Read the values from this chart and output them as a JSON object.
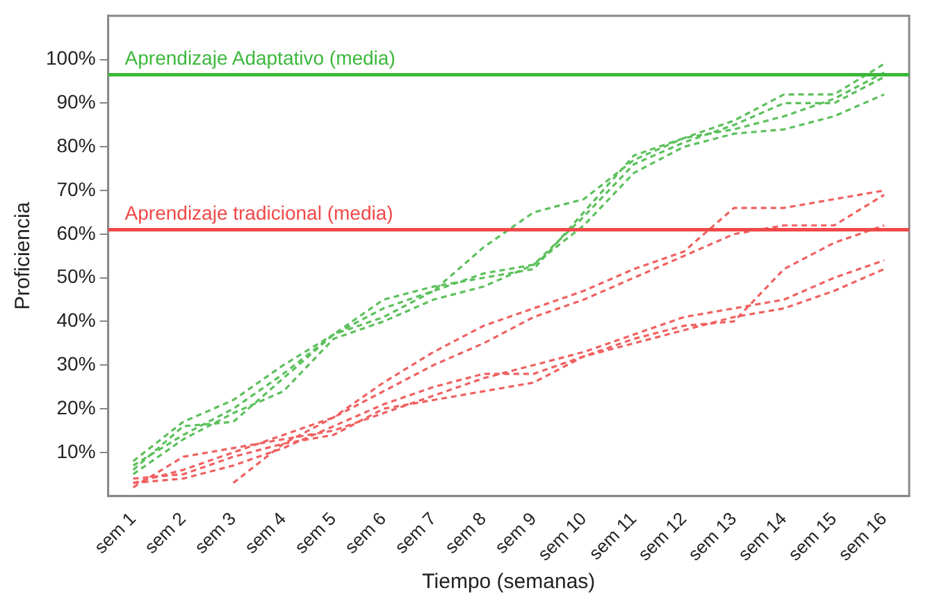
{
  "chart_data": {
    "type": "line",
    "xlabel": "Tiempo (semanas)",
    "ylabel": "Proficiencia",
    "categories": [
      "sem 1",
      "sem 2",
      "sem 3",
      "sem 4",
      "sem 5",
      "sem 6",
      "sem 7",
      "sem 8",
      "sem 9",
      "sem 10",
      "sem 11",
      "sem 12",
      "sem 13",
      "sem 14",
      "sem 15",
      "sem 16"
    ],
    "series": [
      {
        "color": "#5cc05c",
        "values": [
          8,
          17,
          22,
          30,
          37,
          41,
          47,
          57,
          65,
          68,
          77,
          82,
          86,
          92,
          92,
          99
        ]
      },
      {
        "color": "#5cc05c",
        "values": [
          6,
          16,
          17,
          27,
          37,
          45,
          48,
          50,
          52,
          65,
          78,
          82,
          84,
          87,
          91,
          97
        ]
      },
      {
        "color": "#5cc05c",
        "values": [
          5,
          13,
          19,
          24,
          36,
          40,
          45,
          48,
          53,
          62,
          74,
          80,
          83,
          84,
          87,
          92
        ]
      },
      {
        "color": "#5cc05c",
        "values": [
          7,
          14,
          20,
          28,
          37,
          43,
          47,
          51,
          53,
          64,
          76,
          81,
          85,
          90,
          90,
          96
        ]
      },
      {
        "color": "#f06060",
        "values": [
          null,
          null,
          3,
          12,
          18,
          26,
          33,
          39,
          43,
          47,
          52,
          56,
          66,
          66,
          68,
          70
        ]
      },
      {
        "color": "#f06060",
        "values": [
          3,
          6,
          10,
          14,
          18,
          24,
          30,
          35,
          41,
          45,
          50,
          55,
          60,
          62,
          62,
          69
        ]
      },
      {
        "color": "#f06060",
        "values": [
          2,
          9,
          11,
          13,
          15,
          19,
          23,
          27,
          30,
          33,
          37,
          41,
          43,
          45,
          50,
          54
        ]
      },
      {
        "color": "#f06060",
        "values": [
          3,
          4,
          7,
          11,
          16,
          21,
          25,
          28,
          28,
          32,
          36,
          39,
          40,
          52,
          58,
          62
        ]
      },
      {
        "color": "#f06060",
        "values": [
          4,
          5,
          9,
          12,
          14,
          20,
          22,
          24,
          26,
          32,
          35,
          38,
          41,
          43,
          47,
          52
        ]
      }
    ],
    "ylim": [
      0,
      110
    ],
    "yticks": [
      {
        "value": 10,
        "label": "10%"
      },
      {
        "value": 20,
        "label": "20%"
      },
      {
        "value": 30,
        "label": "30%"
      },
      {
        "value": 40,
        "label": "40%"
      },
      {
        "value": 50,
        "label": "50%"
      },
      {
        "value": 60,
        "label": "60%"
      },
      {
        "value": 70,
        "label": "70%"
      },
      {
        "value": 80,
        "label": "80%"
      },
      {
        "value": 90,
        "label": "90%"
      },
      {
        "value": 100,
        "label": "100%"
      }
    ],
    "ref_lines": [
      {
        "axis": "y",
        "value": 96.5,
        "label": "Aprendizaje Adaptativo (media)",
        "color": "#3cb83c"
      },
      {
        "axis": "y",
        "value": 61,
        "label": "Aprendizaje tradicional (media)",
        "color": "#f04848"
      }
    ],
    "grid": false,
    "legend": false,
    "marker": "none",
    "line_style": "dashed"
  }
}
